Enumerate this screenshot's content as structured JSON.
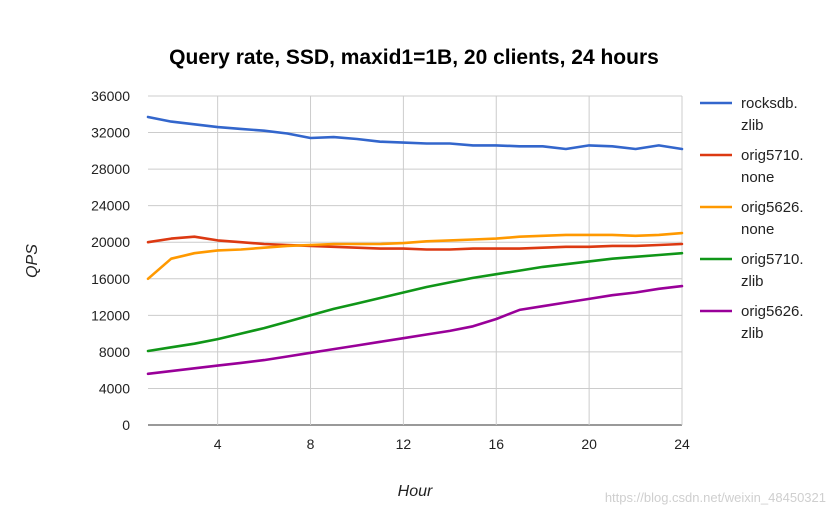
{
  "chart_data": {
    "type": "line",
    "title": "Query rate, SSD, maxid1=1B, 20 clients, 24 hours",
    "xlabel": "Hour",
    "ylabel": "QPS",
    "xlim": [
      1,
      24
    ],
    "ylim": [
      0,
      36000
    ],
    "x_ticks": [
      4,
      8,
      12,
      16,
      20,
      24
    ],
    "y_ticks": [
      0,
      4000,
      8000,
      12000,
      16000,
      20000,
      24000,
      28000,
      32000,
      36000
    ],
    "grid": true,
    "legend_position": "right",
    "x": [
      1,
      2,
      3,
      4,
      5,
      6,
      7,
      8,
      9,
      10,
      11,
      12,
      13,
      14,
      15,
      16,
      17,
      18,
      19,
      20,
      21,
      22,
      23,
      24
    ],
    "series": [
      {
        "name": "rocksdb.zlib",
        "legend_lines": [
          "rocksdb.",
          "zlib"
        ],
        "color": "#3366cc",
        "values": [
          33700,
          33200,
          32900,
          32600,
          32400,
          32200,
          31900,
          31400,
          31500,
          31300,
          31000,
          30900,
          30800,
          30800,
          30600,
          30600,
          30500,
          30500,
          30200,
          30600,
          30500,
          30200,
          30600,
          30200
        ]
      },
      {
        "name": "orig5710.none",
        "legend_lines": [
          "orig5710.",
          "none"
        ],
        "color": "#dc3912",
        "values": [
          20000,
          20400,
          20600,
          20200,
          20000,
          19800,
          19700,
          19600,
          19500,
          19400,
          19300,
          19300,
          19200,
          19200,
          19300,
          19300,
          19300,
          19400,
          19500,
          19500,
          19600,
          19600,
          19700,
          19800
        ]
      },
      {
        "name": "orig5626.none",
        "legend_lines": [
          "orig5626.",
          "none"
        ],
        "color": "#ff9900",
        "values": [
          16000,
          18200,
          18800,
          19100,
          19200,
          19400,
          19600,
          19700,
          19800,
          19800,
          19800,
          19900,
          20100,
          20200,
          20300,
          20400,
          20600,
          20700,
          20800,
          20800,
          20800,
          20700,
          20800,
          21000
        ]
      },
      {
        "name": "orig5710.zlib",
        "legend_lines": [
          "orig5710.",
          "zlib"
        ],
        "color": "#109618",
        "values": [
          8100,
          8500,
          8900,
          9400,
          10000,
          10600,
          11300,
          12000,
          12700,
          13300,
          13900,
          14500,
          15100,
          15600,
          16100,
          16500,
          16900,
          17300,
          17600,
          17900,
          18200,
          18400,
          18600,
          18800
        ]
      },
      {
        "name": "orig5626.zlib",
        "legend_lines": [
          "orig5626.",
          "zlib"
        ],
        "color": "#990099",
        "values": [
          5600,
          5900,
          6200,
          6500,
          6800,
          7100,
          7500,
          7900,
          8300,
          8700,
          9100,
          9500,
          9900,
          10300,
          10800,
          11600,
          12600,
          13000,
          13400,
          13800,
          14200,
          14500,
          14900,
          15200
        ]
      }
    ]
  },
  "watermark": "https://blog.csdn.net/weixin_48450321"
}
